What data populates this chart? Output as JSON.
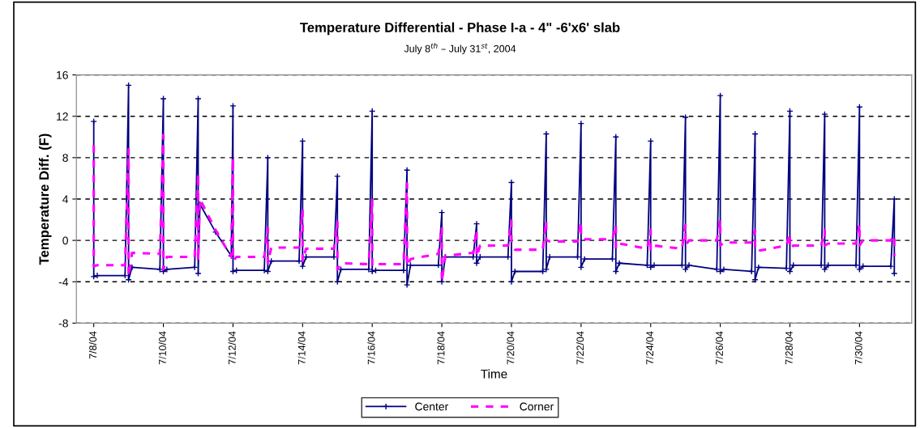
{
  "chart_data": {
    "type": "line",
    "title": "Temperature Differential - Phase I-a - 4\" -6'x6' slab",
    "subtitle": "July 8$^{th}$ – July 31$^{st}$, 2004",
    "xlabel": "Time",
    "ylabel": "Temperature Diff. (F)",
    "xlim": [
      "2004-07-07T12:00",
      "2004-07-31T12:00"
    ],
    "xticks": [
      {
        "value": "2004-07-08",
        "label": "7/8/04"
      },
      {
        "value": "2004-07-10",
        "label": "7/10/04"
      },
      {
        "value": "2004-07-12",
        "label": "7/12/04"
      },
      {
        "value": "2004-07-14",
        "label": "7/14/04"
      },
      {
        "value": "2004-07-16",
        "label": "7/16/04"
      },
      {
        "value": "2004-07-18",
        "label": "7/18/04"
      },
      {
        "value": "2004-07-20",
        "label": "7/20/04"
      },
      {
        "value": "2004-07-22",
        "label": "7/22/04"
      },
      {
        "value": "2004-07-24",
        "label": "7/24/04"
      },
      {
        "value": "2004-07-26",
        "label": "7/26/04"
      },
      {
        "value": "2004-07-28",
        "label": "7/28/04"
      },
      {
        "value": "2004-07-30",
        "label": "7/30/04"
      }
    ],
    "x": [
      "2004-07-08T00:00",
      "2004-07-08T00:00",
      "2004-07-08T02:24",
      "2004-07-08T21:36",
      "2004-07-09T00:00",
      "2004-07-09T00:00",
      "2004-07-09T02:24",
      "2004-07-09T21:36",
      "2004-07-10T00:00",
      "2004-07-10T00:00",
      "2004-07-10T02:24",
      "2004-07-10T21:36",
      "2004-07-11T00:00",
      "2004-07-11T00:00",
      "2004-07-11T01:12",
      "2004-07-11T12:00",
      "2004-07-11T22:48",
      "2004-07-12T00:00",
      "2004-07-12T00:00",
      "2004-07-12T02:24",
      "2004-07-12T21:36",
      "2004-07-13T00:00",
      "2004-07-13T00:00",
      "2004-07-13T02:24",
      "2004-07-13T21:36",
      "2004-07-14T00:00",
      "2004-07-14T00:00",
      "2004-07-14T02:24",
      "2004-07-14T21:36",
      "2004-07-15T00:00",
      "2004-07-15T00:00",
      "2004-07-15T02:24",
      "2004-07-15T21:36",
      "2004-07-16T00:00",
      "2004-07-16T00:00",
      "2004-07-16T02:24",
      "2004-07-16T21:36",
      "2004-07-17T00:00",
      "2004-07-17T00:00",
      "2004-07-17T02:24",
      "2004-07-17T21:36",
      "2004-07-18T00:00",
      "2004-07-18T00:00",
      "2004-07-18T02:24",
      "2004-07-18T21:36",
      "2004-07-19T00:00",
      "2004-07-19T00:00",
      "2004-07-19T02:24",
      "2004-07-19T21:36",
      "2004-07-20T00:00",
      "2004-07-20T00:00",
      "2004-07-20T02:24",
      "2004-07-20T21:36",
      "2004-07-21T00:00",
      "2004-07-21T00:00",
      "2004-07-21T02:24",
      "2004-07-21T21:36",
      "2004-07-22T00:00",
      "2004-07-22T00:00",
      "2004-07-22T02:24",
      "2004-07-22T21:36",
      "2004-07-23T00:00",
      "2004-07-23T00:00",
      "2004-07-23T02:24",
      "2004-07-23T21:36",
      "2004-07-24T00:00",
      "2004-07-24T00:00",
      "2004-07-24T02:24",
      "2004-07-24T21:36",
      "2004-07-25T00:00",
      "2004-07-25T00:00",
      "2004-07-25T02:24",
      "2004-07-25T21:36",
      "2004-07-26T00:00",
      "2004-07-26T00:00",
      "2004-07-26T02:24",
      "2004-07-26T21:36",
      "2004-07-27T00:00",
      "2004-07-27T00:00",
      "2004-07-27T02:24",
      "2004-07-27T21:36",
      "2004-07-28T00:00",
      "2004-07-28T00:00",
      "2004-07-28T02:24",
      "2004-07-28T21:36",
      "2004-07-29T00:00",
      "2004-07-29T00:00",
      "2004-07-29T02:24",
      "2004-07-29T21:36",
      "2004-07-30T00:00",
      "2004-07-30T00:00",
      "2004-07-30T02:24",
      "2004-07-30T21:36",
      "2004-07-31T00:00",
      "2004-07-31T00:00"
    ],
    "ylim": [
      -8,
      16
    ],
    "yticks": [
      -8,
      -4,
      0,
      4,
      8,
      12,
      16
    ],
    "grid": "y",
    "legend": "bottom",
    "series": [
      {
        "name": "Center",
        "color": "#000080",
        "marker": "cross",
        "line_style": "solid",
        "values": [
          11.5,
          -3.5,
          -3.4,
          -3.4,
          15,
          -3.8,
          -2.6,
          -2.8,
          13.7,
          -3,
          -2.8,
          -2.6,
          13.7,
          -3.2,
          3.5,
          0.8,
          -1.5,
          13,
          -3,
          -2.9,
          -2.9,
          8,
          -3,
          -2,
          -2,
          9.6,
          -2.5,
          -1.6,
          -1.6,
          6.2,
          -4,
          -2.8,
          -2.8,
          12.5,
          -3,
          -2.9,
          -2.9,
          6.8,
          -4.3,
          -2.4,
          -2.4,
          2.7,
          -4,
          -1.6,
          -1.6,
          1.6,
          -2.2,
          -1.6,
          -1.6,
          5.6,
          -4,
          -3,
          -3,
          10.3,
          -2.8,
          -1.6,
          -1.6,
          11.3,
          -2.6,
          -1.8,
          -1.8,
          10,
          -3,
          -2.2,
          -2.4,
          9.6,
          -2.6,
          -2.4,
          -2.4,
          11.9,
          -2.8,
          -2.4,
          -2.8,
          14,
          -3,
          -2.8,
          -3,
          10.3,
          -3.8,
          -2.6,
          -2.7,
          12.5,
          -3,
          -2.4,
          -2.4,
          12.2,
          -2.8,
          -2.4,
          -2.4,
          12.9,
          -2.8,
          -2.5,
          -2.5,
          4,
          -3.2
        ]
      },
      {
        "name": "Corner",
        "color": "#ff00ff",
        "marker": "none",
        "line_style": "dashed",
        "values": [
          9.2,
          -2.5,
          -2.4,
          -2.4,
          8.8,
          -3.5,
          -1.2,
          -1.3,
          10.2,
          -2.8,
          -1.6,
          -1.6,
          6.5,
          -2,
          4,
          1,
          -1.6,
          8,
          -2,
          -1.6,
          -1.6,
          1.2,
          -2.2,
          -0.7,
          -0.7,
          3,
          -2,
          -0.8,
          -0.8,
          1.8,
          -2.8,
          -2.2,
          -2.3,
          4,
          -2.5,
          -2.3,
          -2.3,
          5.5,
          -2.5,
          -1.8,
          -1.3,
          1.3,
          -4,
          -1.5,
          -1.2,
          1,
          -1.6,
          -0.5,
          -0.5,
          1.9,
          -0.2,
          -0.9,
          -0.9,
          1.9,
          0,
          -0.1,
          -0.1,
          1.8,
          0.2,
          0.1,
          0.1,
          1.5,
          -0.8,
          -0.3,
          -0.8,
          1,
          -1,
          -0.5,
          -0.8,
          1.5,
          -0.5,
          0,
          0,
          2,
          -0.5,
          -0.2,
          -0.2,
          1,
          -1,
          -1,
          -0.5,
          0.7,
          -0.8,
          -0.5,
          -0.5,
          1,
          -0.5,
          -0.3,
          -0.3,
          1.6,
          -0.5,
          0,
          0,
          0.5,
          -1.5
        ]
      }
    ]
  }
}
